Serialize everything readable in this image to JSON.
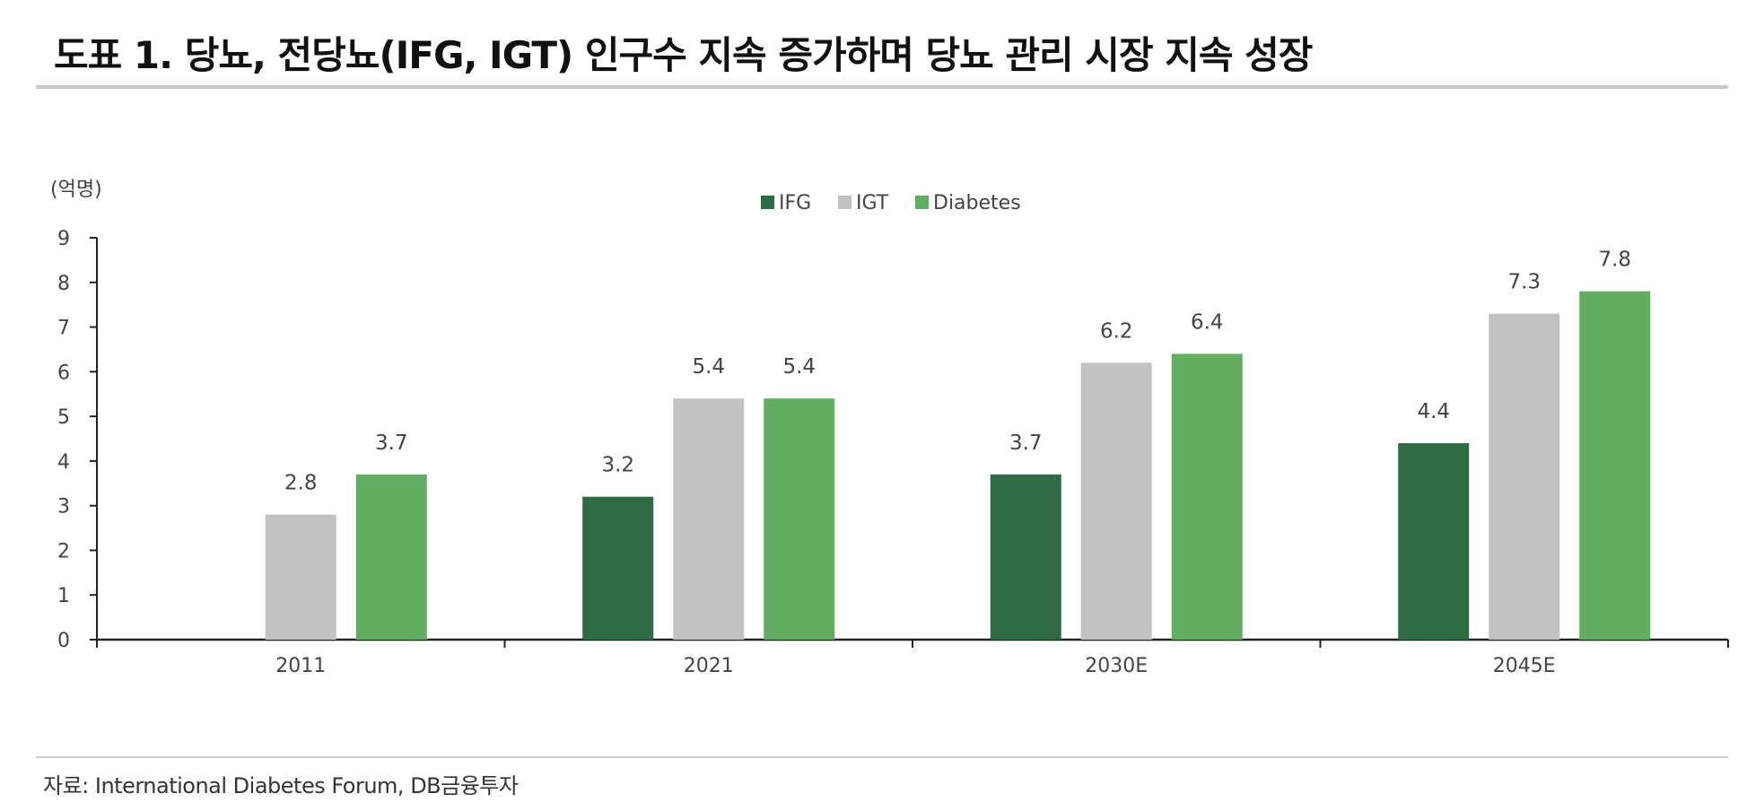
{
  "title": "도표 1. 당뇨, 전당뇨(IFG, IGT) 인구수 지속 증가하며 당뇨 관리 시장 지속 성장",
  "source": "자료: International Diabetes Forum, DB금융투자",
  "colors": {
    "IFG": "#2e6b45",
    "IGT": "#c2c2c2",
    "Diabetes": "#62ad62"
  },
  "chart_data": {
    "type": "bar",
    "unit_label": "(억명)",
    "categories": [
      "2011",
      "2021",
      "2030E",
      "2045E"
    ],
    "series": [
      {
        "name": "IFG",
        "values": [
          null,
          3.2,
          3.7,
          4.4
        ],
        "labels": [
          "",
          "3.2",
          "3.7",
          "4.4"
        ]
      },
      {
        "name": "IGT",
        "values": [
          2.8,
          5.4,
          6.2,
          7.3
        ],
        "labels": [
          "2.8",
          "5.4",
          "6.2",
          "7.3"
        ]
      },
      {
        "name": "Diabetes",
        "values": [
          3.7,
          5.4,
          6.4,
          7.8
        ],
        "labels": [
          "3.7",
          "5.4",
          "6.4",
          "7.8"
        ]
      }
    ],
    "ylim": [
      0,
      9
    ],
    "yticks": [
      "0",
      "1",
      "2",
      "3",
      "4",
      "5",
      "6",
      "7",
      "8",
      "9"
    ],
    "legend": "top-center",
    "grid": false
  }
}
